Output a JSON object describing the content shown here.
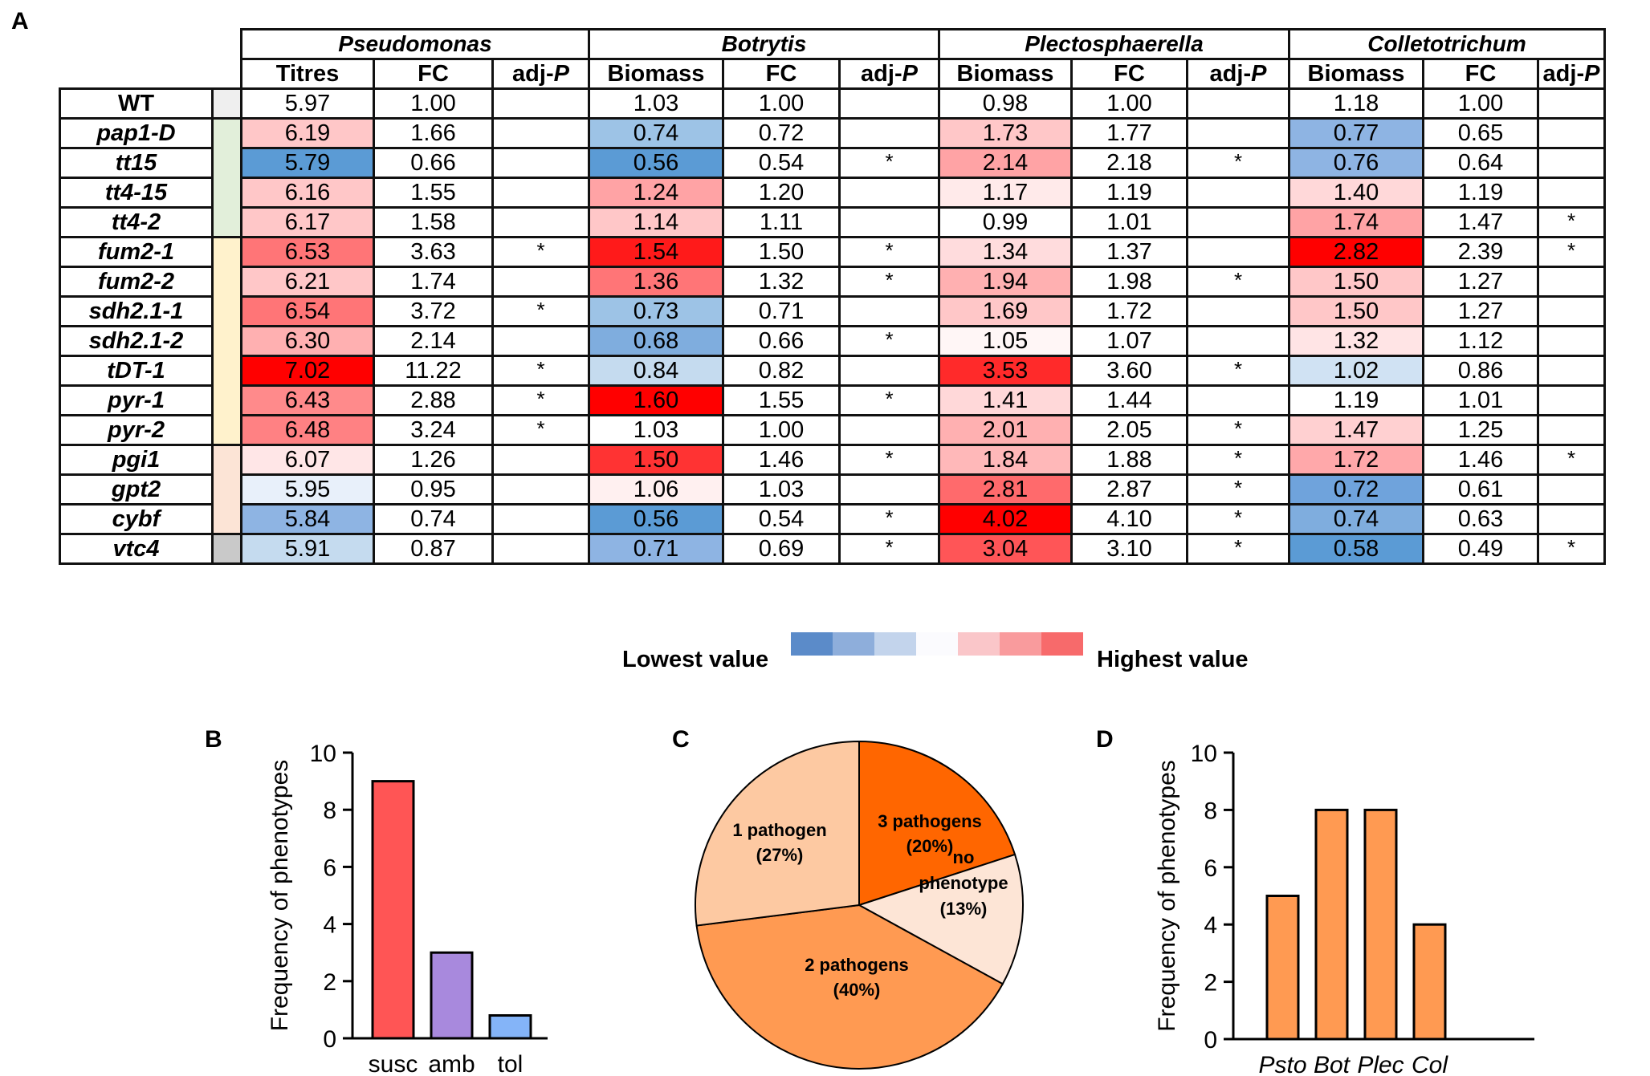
{
  "panels": {
    "a": "A",
    "b": "B",
    "c": "C",
    "d": "D"
  },
  "table": {
    "pathogens": [
      "Pseudomonas",
      "Botrytis",
      "Plectosphaerella",
      "Colletotrichum"
    ],
    "subheaders": [
      [
        "Titres",
        "FC",
        "adj-P"
      ],
      [
        "Biomass",
        "FC",
        "adj-P"
      ],
      [
        "Biomass",
        "FC",
        "adj-P"
      ],
      [
        "Biomass",
        "FC",
        "adj-P"
      ]
    ],
    "group_colors": [
      "#efefef",
      "#e2efda",
      "#fff2cc",
      "#fce4d6",
      "#c9c9c9"
    ],
    "rows": [
      {
        "genotype": "WT",
        "group": 0,
        "cells": [
          [
            "5.97",
            "1.00",
            ""
          ],
          [
            "1.03",
            "1.00",
            ""
          ],
          [
            "0.98",
            "1.00",
            ""
          ],
          [
            "1.18",
            "1.00",
            ""
          ]
        ],
        "colors": [
          "#ffffff",
          "#ffffff",
          "#ffffff",
          "#ffffff"
        ]
      },
      {
        "genotype": "pap1-D",
        "group": 1,
        "cells": [
          [
            "6.19",
            "1.66",
            ""
          ],
          [
            "0.74",
            "0.72",
            ""
          ],
          [
            "1.73",
            "1.77",
            ""
          ],
          [
            "0.77",
            "0.65",
            ""
          ]
        ],
        "colors": [
          "#ffc7c8",
          "#9dc3e6",
          "#ffc7c8",
          "#8eb4e3"
        ]
      },
      {
        "genotype": "tt15",
        "group": 1,
        "cells": [
          [
            "5.79",
            "0.66",
            ""
          ],
          [
            "0.56",
            "0.54",
            "*"
          ],
          [
            "2.14",
            "2.18",
            "*"
          ],
          [
            "0.76",
            "0.64",
            ""
          ]
        ],
        "colors": [
          "#5b9bd5",
          "#5b9bd5",
          "#ffa3a5",
          "#8eb4e3"
        ]
      },
      {
        "genotype": "tt4-15",
        "group": 1,
        "cells": [
          [
            "6.16",
            "1.55",
            ""
          ],
          [
            "1.24",
            "1.20",
            ""
          ],
          [
            "1.17",
            "1.19",
            ""
          ],
          [
            "1.40",
            "1.19",
            ""
          ]
        ],
        "colors": [
          "#ffc7c8",
          "#ffa3a5",
          "#ffeaea",
          "#ffd8d9"
        ]
      },
      {
        "genotype": "tt4-2",
        "group": 1,
        "cells": [
          [
            "6.17",
            "1.58",
            ""
          ],
          [
            "1.14",
            "1.11",
            ""
          ],
          [
            "0.99",
            "1.01",
            ""
          ],
          [
            "1.74",
            "1.47",
            "*"
          ]
        ],
        "colors": [
          "#ffc7c8",
          "#ffc7c8",
          "#ffffff",
          "#ffa3a5"
        ]
      },
      {
        "genotype": "fum2-1",
        "group": 2,
        "cells": [
          [
            "6.53",
            "3.63",
            "*"
          ],
          [
            "1.54",
            "1.50",
            "*"
          ],
          [
            "1.34",
            "1.37",
            ""
          ],
          [
            "2.82",
            "2.39",
            "*"
          ]
        ],
        "colors": [
          "#ff7577",
          "#ff1a1a",
          "#ffdcdd",
          "#ff0000"
        ]
      },
      {
        "genotype": "fum2-2",
        "group": 2,
        "cells": [
          [
            "6.21",
            "1.74",
            ""
          ],
          [
            "1.36",
            "1.32",
            "*"
          ],
          [
            "1.94",
            "1.98",
            "*"
          ],
          [
            "1.50",
            "1.27",
            ""
          ]
        ],
        "colors": [
          "#ffc7c8",
          "#ff7577",
          "#ffb0b1",
          "#ffc7c8"
        ]
      },
      {
        "genotype": "sdh2.1-1",
        "group": 2,
        "cells": [
          [
            "6.54",
            "3.72",
            "*"
          ],
          [
            "0.73",
            "0.71",
            ""
          ],
          [
            "1.69",
            "1.72",
            ""
          ],
          [
            "1.50",
            "1.27",
            ""
          ]
        ],
        "colors": [
          "#ff7577",
          "#9dc3e6",
          "#ffc7c8",
          "#ffc7c8"
        ]
      },
      {
        "genotype": "sdh2.1-2",
        "group": 2,
        "cells": [
          [
            "6.30",
            "2.14",
            ""
          ],
          [
            "0.68",
            "0.66",
            "*"
          ],
          [
            "1.05",
            "1.07",
            ""
          ],
          [
            "1.32",
            "1.12",
            ""
          ]
        ],
        "colors": [
          "#ffb0b1",
          "#7fadde",
          "#fff6f6",
          "#ffe4e5"
        ]
      },
      {
        "genotype": "tDT-1",
        "group": 2,
        "cells": [
          [
            "7.02",
            "11.22",
            "*"
          ],
          [
            "0.84",
            "0.82",
            ""
          ],
          [
            "3.53",
            "3.60",
            "*"
          ],
          [
            "1.02",
            "0.86",
            ""
          ]
        ],
        "colors": [
          "#ff0000",
          "#c5dbef",
          "#ff2a2a",
          "#d0e2f3"
        ]
      },
      {
        "genotype": "pyr-1",
        "group": 2,
        "cells": [
          [
            "6.43",
            "2.88",
            "*"
          ],
          [
            "1.60",
            "1.55",
            "*"
          ],
          [
            "1.41",
            "1.44",
            ""
          ],
          [
            "1.19",
            "1.01",
            ""
          ]
        ],
        "colors": [
          "#ff8a8b",
          "#ff0000",
          "#ffd8d9",
          "#ffffff"
        ]
      },
      {
        "genotype": "pyr-2",
        "group": 2,
        "cells": [
          [
            "6.48",
            "3.24",
            "*"
          ],
          [
            "1.03",
            "1.00",
            ""
          ],
          [
            "2.01",
            "2.05",
            "*"
          ],
          [
            "1.47",
            "1.25",
            ""
          ]
        ],
        "colors": [
          "#ff8183",
          "#ffffff",
          "#ffb0b1",
          "#ffd0d1"
        ]
      },
      {
        "genotype": "pgi1",
        "group": 3,
        "cells": [
          [
            "6.07",
            "1.26",
            ""
          ],
          [
            "1.50",
            "1.46",
            "*"
          ],
          [
            "1.84",
            "1.88",
            "*"
          ],
          [
            "1.72",
            "1.46",
            "*"
          ]
        ],
        "colors": [
          "#ffe6e7",
          "#ff3333",
          "#ffb8b9",
          "#ffa8aa"
        ]
      },
      {
        "genotype": "gpt2",
        "group": 3,
        "cells": [
          [
            "5.95",
            "0.95",
            ""
          ],
          [
            "1.06",
            "1.03",
            ""
          ],
          [
            "2.81",
            "2.87",
            "*"
          ],
          [
            "0.72",
            "0.61",
            ""
          ]
        ],
        "colors": [
          "#e8f0fa",
          "#fff0f0",
          "#ff6a6c",
          "#6fa3dc"
        ]
      },
      {
        "genotype": "cybf",
        "group": 3,
        "cells": [
          [
            "5.84",
            "0.74",
            ""
          ],
          [
            "0.56",
            "0.54",
            "*"
          ],
          [
            "4.02",
            "4.10",
            "*"
          ],
          [
            "0.74",
            "0.63",
            ""
          ]
        ],
        "colors": [
          "#8eb4e3",
          "#5b9bd5",
          "#ff0000",
          "#7fadde"
        ]
      },
      {
        "genotype": "vtc4",
        "group": 4,
        "cells": [
          [
            "5.91",
            "0.87",
            ""
          ],
          [
            "0.71",
            "0.69",
            "*"
          ],
          [
            "3.04",
            "3.10",
            "*"
          ],
          [
            "0.58",
            "0.49",
            "*"
          ]
        ],
        "colors": [
          "#c5dbef",
          "#8eb4e3",
          "#ff5557",
          "#5b9bd5"
        ]
      }
    ],
    "legend": {
      "low_label": "Lowest value",
      "high_label": "Highest value",
      "colors": [
        "#5b8bc9",
        "#8eaedb",
        "#c3d4ec",
        "#fbfbfe",
        "#fac6c9",
        "#f99b9d",
        "#f76a6b"
      ]
    }
  },
  "chart_data": [
    {
      "type": "bar",
      "panel": "B",
      "title": "",
      "categories": [
        "susc",
        "amb",
        "tol"
      ],
      "values": [
        9,
        3,
        0.8
      ],
      "colors": [
        "#ff5555",
        "#a889dd",
        "#84b4f8"
      ],
      "xlabel": "",
      "ylabel": "Frequency of phenotypes",
      "ylim": [
        0,
        10
      ],
      "yticks": [
        "0",
        "2",
        "4",
        "6",
        "8",
        "10"
      ],
      "grid": false
    },
    {
      "type": "pie",
      "panel": "C",
      "title": "",
      "slices": [
        {
          "label": "3 pathogens",
          "pct_label": "(20%)",
          "value": 20,
          "color": "#ff6600"
        },
        {
          "label": "no phenotype",
          "pct_label": "(13%)",
          "value": 13,
          "color": "#fde5d6"
        },
        {
          "label": "2 pathogens",
          "pct_label": "(40%)",
          "value": 40,
          "color": "#ff9a52"
        },
        {
          "label": "1 pathogen",
          "pct_label": "(27%)",
          "value": 27,
          "color": "#fdc9a2"
        }
      ]
    },
    {
      "type": "bar",
      "panel": "D",
      "title": "",
      "categories": [
        "Psto",
        "Bot",
        "Plec",
        "Col"
      ],
      "values": [
        5,
        8,
        8,
        4
      ],
      "colors": [
        "#ff9a52",
        "#ff9a52",
        "#ff9a52",
        "#ff9a52"
      ],
      "xlabel": "",
      "ylabel": "Frequency of phenotypes",
      "ylim": [
        0,
        10
      ],
      "yticks": [
        "0",
        "2",
        "4",
        "6",
        "8",
        "10"
      ],
      "grid": false
    }
  ]
}
